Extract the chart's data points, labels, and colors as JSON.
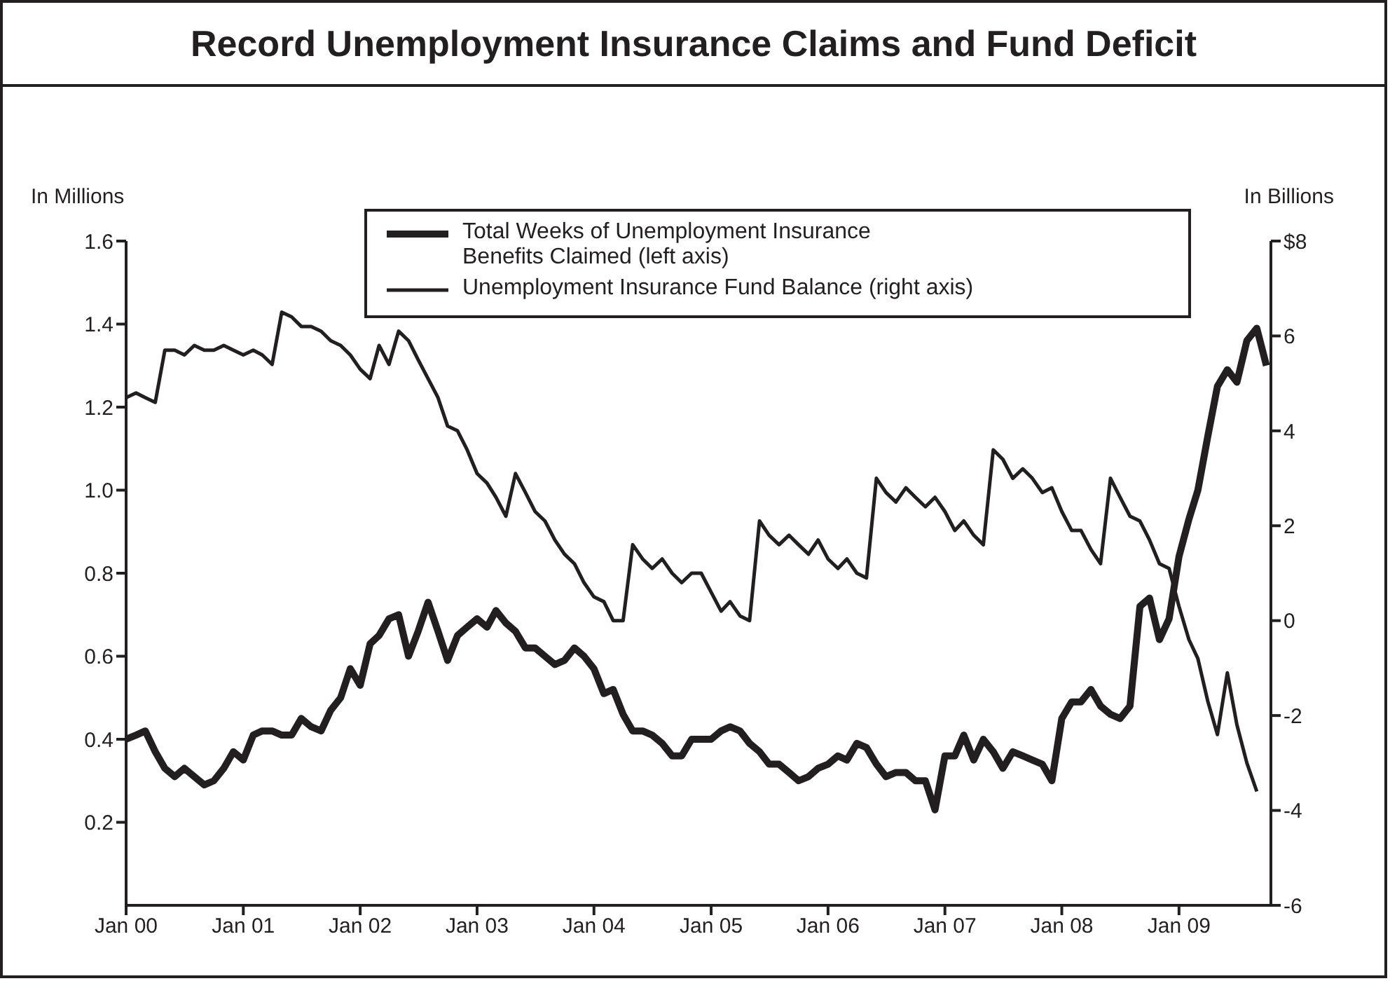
{
  "chart_data": {
    "type": "line",
    "title": "Record Unemployment Insurance Claims and Fund Deficit",
    "ylabel": "In Millions",
    "y2label": "In Billions",
    "x": [
      "2000-01",
      "2000-02",
      "2000-03",
      "2000-04",
      "2000-05",
      "2000-06",
      "2000-07",
      "2000-08",
      "2000-09",
      "2000-10",
      "2000-11",
      "2000-12",
      "2001-01",
      "2001-02",
      "2001-03",
      "2001-04",
      "2001-05",
      "2001-06",
      "2001-07",
      "2001-08",
      "2001-09",
      "2001-10",
      "2001-11",
      "2001-12",
      "2002-01",
      "2002-02",
      "2002-03",
      "2002-04",
      "2002-05",
      "2002-06",
      "2002-07",
      "2002-08",
      "2002-09",
      "2002-10",
      "2002-11",
      "2002-12",
      "2003-01",
      "2003-02",
      "2003-03",
      "2003-04",
      "2003-05",
      "2003-06",
      "2003-07",
      "2003-08",
      "2003-09",
      "2003-10",
      "2003-11",
      "2003-12",
      "2004-01",
      "2004-02",
      "2004-03",
      "2004-04",
      "2004-05",
      "2004-06",
      "2004-07",
      "2004-08",
      "2004-09",
      "2004-10",
      "2004-11",
      "2004-12",
      "2005-01",
      "2005-02",
      "2005-03",
      "2005-04",
      "2005-05",
      "2005-06",
      "2005-07",
      "2005-08",
      "2005-09",
      "2005-10",
      "2005-11",
      "2005-12",
      "2006-01",
      "2006-02",
      "2006-03",
      "2006-04",
      "2006-05",
      "2006-06",
      "2006-07",
      "2006-08",
      "2006-09",
      "2006-10",
      "2006-11",
      "2006-12",
      "2007-01",
      "2007-02",
      "2007-03",
      "2007-04",
      "2007-05",
      "2007-06",
      "2007-07",
      "2007-08",
      "2007-09",
      "2007-10",
      "2007-11",
      "2007-12",
      "2008-01",
      "2008-02",
      "2008-03",
      "2008-04",
      "2008-05",
      "2008-06",
      "2008-07",
      "2008-08",
      "2008-09",
      "2008-10",
      "2008-11",
      "2008-12",
      "2009-01",
      "2009-02",
      "2009-03",
      "2009-04",
      "2009-05",
      "2009-06",
      "2009-07",
      "2009-08",
      "2009-09",
      "2009-10"
    ],
    "series": [
      {
        "name": "Total Weeks of Unemployment Insurance Benefits Claimed (left axis)",
        "color": "#231f20",
        "values": [
          0.4,
          0.41,
          0.42,
          0.37,
          0.33,
          0.31,
          0.33,
          0.31,
          0.29,
          0.3,
          0.33,
          0.37,
          0.35,
          0.41,
          0.42,
          0.42,
          0.41,
          0.41,
          0.45,
          0.43,
          0.42,
          0.47,
          0.5,
          0.57,
          0.53,
          0.63,
          0.65,
          0.69,
          0.7,
          0.6,
          0.66,
          0.73,
          0.66,
          0.59,
          0.65,
          0.67,
          0.69,
          0.67,
          0.71,
          0.68,
          0.66,
          0.62,
          0.62,
          0.6,
          0.58,
          0.59,
          0.62,
          0.6,
          0.57,
          0.51,
          0.52,
          0.46,
          0.42,
          0.42,
          0.41,
          0.39,
          0.36,
          0.36,
          0.4,
          0.4,
          0.4,
          0.42,
          0.43,
          0.42,
          0.39,
          0.37,
          0.34,
          0.34,
          0.32,
          0.3,
          0.31,
          0.33,
          0.34,
          0.36,
          0.35,
          0.39,
          0.38,
          0.34,
          0.31,
          0.32,
          0.32,
          0.3,
          0.3,
          0.23,
          0.36,
          0.36,
          0.41,
          0.35,
          0.4,
          0.37,
          0.33,
          0.37,
          0.36,
          0.35,
          0.34,
          0.3,
          0.45,
          0.49,
          0.49,
          0.52,
          0.48,
          0.46,
          0.45,
          0.48,
          0.72,
          0.74,
          0.64,
          0.69,
          0.84,
          0.93,
          1.0,
          1.13,
          1.25,
          1.29,
          1.26,
          1.36,
          1.39,
          1.3
        ]
      },
      {
        "name": "Unemployment Insurance Fund Balance (right axis)",
        "color": "#231f20",
        "axis": "y2",
        "values": [
          4.7,
          4.8,
          4.7,
          4.6,
          5.7,
          5.7,
          5.6,
          5.8,
          5.7,
          5.7,
          5.8,
          5.7,
          5.6,
          5.7,
          5.6,
          5.4,
          6.5,
          6.4,
          6.2,
          6.2,
          6.1,
          5.9,
          5.8,
          5.6,
          5.3,
          5.1,
          5.8,
          5.4,
          6.1,
          5.9,
          5.5,
          5.1,
          4.7,
          4.1,
          4.0,
          3.6,
          3.1,
          2.9,
          2.6,
          2.2,
          3.1,
          2.7,
          2.3,
          2.1,
          1.7,
          1.4,
          1.2,
          0.8,
          0.5,
          0.4,
          0.0,
          0.0,
          1.6,
          1.3,
          1.1,
          1.3,
          1.0,
          0.8,
          1.0,
          1.0,
          0.6,
          0.2,
          0.4,
          0.1,
          0.0,
          2.1,
          1.8,
          1.6,
          1.8,
          1.6,
          1.4,
          1.7,
          1.3,
          1.1,
          1.3,
          1.0,
          0.9,
          3.0,
          2.7,
          2.5,
          2.8,
          2.6,
          2.4,
          2.6,
          2.3,
          1.9,
          2.1,
          1.8,
          1.6,
          3.6,
          3.4,
          3.0,
          3.2,
          3.0,
          2.7,
          2.8,
          2.3,
          1.9,
          1.9,
          1.5,
          1.2,
          3.0,
          2.6,
          2.2,
          2.1,
          1.7,
          1.2,
          1.1,
          0.3,
          -0.4,
          -0.8,
          -1.7,
          -2.4,
          -1.1,
          -2.2,
          -3.0,
          -3.6,
          null
        ]
      }
    ],
    "xlim": [
      "2000-01-01",
      "2009-10-15"
    ],
    "xticks": [
      {
        "value": "2000-01",
        "label": "Jan 00"
      },
      {
        "value": "2001-01",
        "label": "Jan 01"
      },
      {
        "value": "2002-01",
        "label": "Jan 02"
      },
      {
        "value": "2003-01",
        "label": "Jan 03"
      },
      {
        "value": "2004-01",
        "label": "Jan 04"
      },
      {
        "value": "2005-01",
        "label": "Jan 05"
      },
      {
        "value": "2006-01",
        "label": "Jan 06"
      },
      {
        "value": "2007-01",
        "label": "Jan 07"
      },
      {
        "value": "2008-01",
        "label": "Jan 08"
      },
      {
        "value": "2009-01",
        "label": "Jan 09"
      }
    ],
    "ylim": [
      0,
      1.6
    ],
    "yticks": [
      0.2,
      0.4,
      0.6,
      0.8,
      {
        "value": 1,
        "label": "1.0"
      },
      1.2,
      1.4,
      1.6
    ],
    "y2lim": [
      -6,
      8
    ],
    "y2ticks": [
      -6,
      -4,
      -2,
      0,
      2,
      4,
      6,
      {
        "value": 8,
        "label": "$8"
      }
    ],
    "legend": "top",
    "marker": "none",
    "line_style": "solid"
  }
}
